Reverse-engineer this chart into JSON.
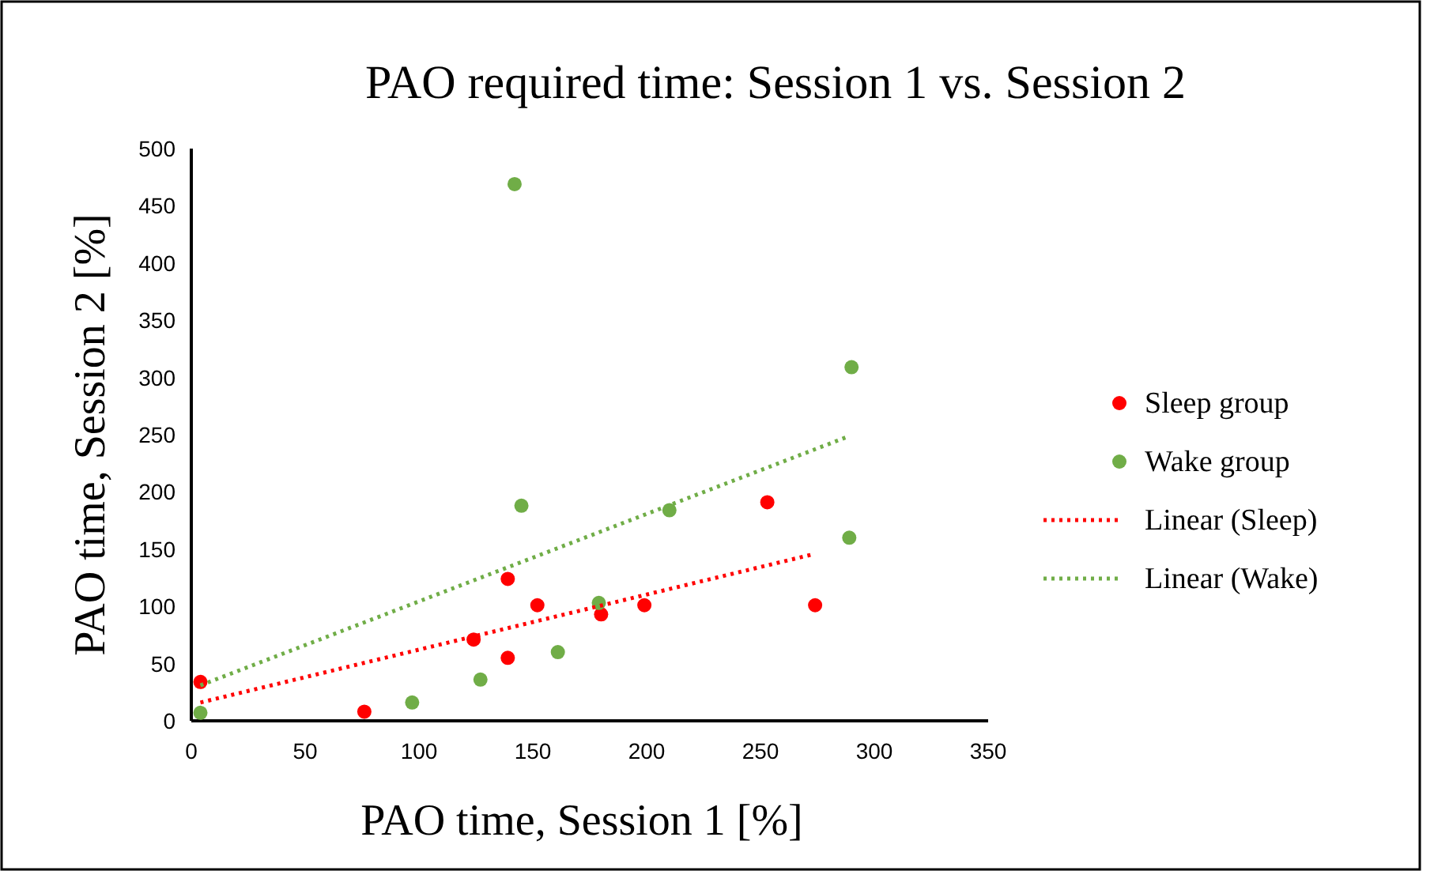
{
  "chart_data": {
    "type": "scatter",
    "title": "PAO required time: Session 1 vs. Session 2",
    "xlabel": "PAO time, Session 1 [%]",
    "ylabel": "PAO time, Session 2 [%]",
    "xlim": [
      0,
      350
    ],
    "xticks": [
      0,
      50,
      100,
      150,
      200,
      250,
      300,
      350
    ],
    "ylim": [
      0,
      500
    ],
    "yticks": [
      0,
      50,
      100,
      150,
      200,
      250,
      300,
      350,
      400,
      450,
      500
    ],
    "grid": false,
    "legend": "right",
    "marker": "circle",
    "series": [
      {
        "name": "Sleep group",
        "color": "#ff0000",
        "x": [
          4,
          76,
          139,
          152,
          124,
          139,
          180,
          199,
          253,
          274
        ],
        "values": [
          34,
          8,
          124,
          101,
          71,
          55,
          93,
          101,
          191,
          101
        ]
      },
      {
        "name": "Wake group",
        "color": "#70ad47",
        "x": [
          4,
          97,
          127,
          142,
          145,
          161,
          179,
          210,
          290,
          289
        ],
        "values": [
          7,
          16,
          36,
          469,
          188,
          60,
          103,
          184,
          309,
          160
        ]
      },
      {
        "name": "Linear (Sleep)",
        "type": "line",
        "line_style": "dotted",
        "marker": "none",
        "color": "#ff0000",
        "x": [
          4,
          272
        ],
        "values": [
          16,
          145
        ]
      },
      {
        "name": "Linear (Wake)",
        "type": "line",
        "line_style": "dotted",
        "marker": "none",
        "color": "#70ad47",
        "x": [
          4,
          288
        ],
        "values": [
          31,
          248
        ]
      }
    ]
  }
}
